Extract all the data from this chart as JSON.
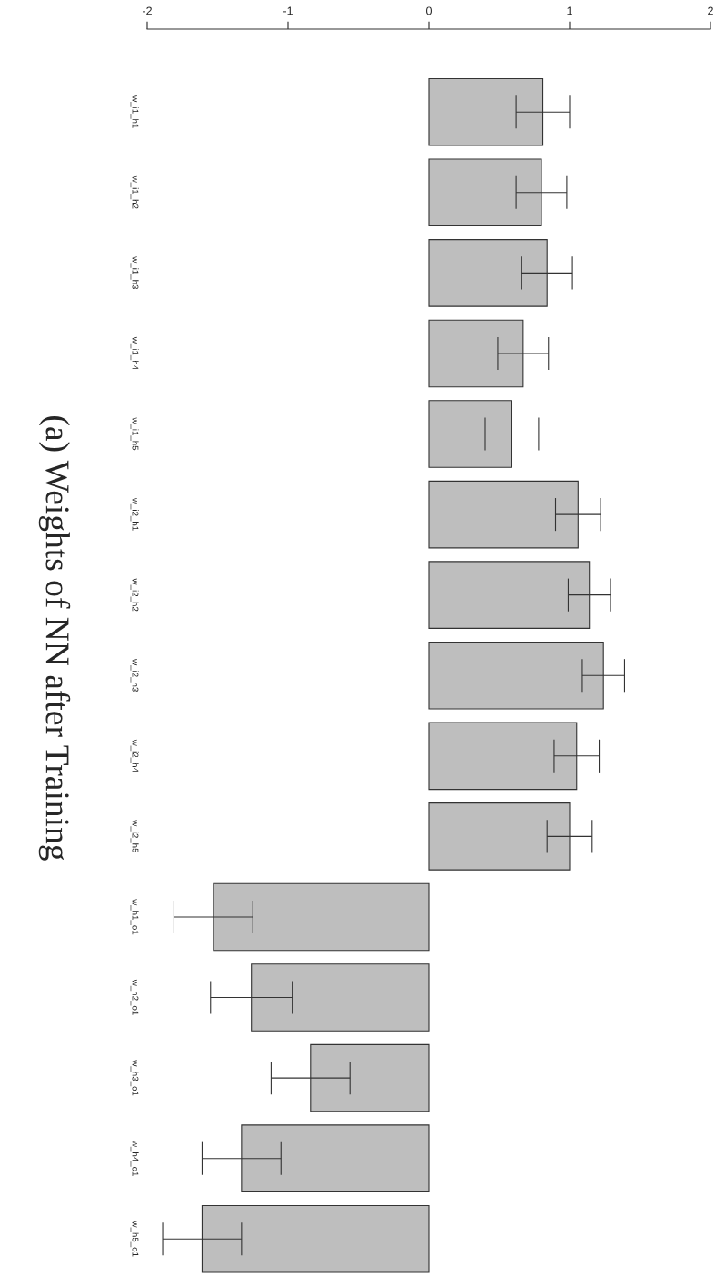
{
  "chart_data": {
    "type": "bar",
    "orientation": "horizontal",
    "title": "(a) Weights of NN after Training",
    "categories": [
      "w_i1_h1",
      "w_i1_h2",
      "w_i1_h3",
      "w_i1_h4",
      "w_i1_h5",
      "w_i2_h1",
      "w_i2_h2",
      "w_i2_h3",
      "w_i2_h4",
      "w_i2_h5",
      "w_h1_o1",
      "w_h2_o1",
      "w_h3_o1",
      "w_h4_o1",
      "w_h5_o1"
    ],
    "values": [
      0.81,
      0.8,
      0.84,
      0.67,
      0.59,
      1.06,
      1.14,
      1.24,
      1.05,
      1.0,
      -1.53,
      -1.26,
      -0.84,
      -1.33,
      -1.61
    ],
    "errors": [
      0.19,
      0.18,
      0.18,
      0.18,
      0.19,
      0.16,
      0.15,
      0.15,
      0.16,
      0.16,
      0.28,
      0.29,
      0.28,
      0.28,
      0.28
    ],
    "color": "#bebebe",
    "xlim": [
      -2,
      2
    ],
    "xticks": [
      -2,
      -1,
      0,
      1,
      2
    ],
    "grid": false,
    "legend": false
  }
}
